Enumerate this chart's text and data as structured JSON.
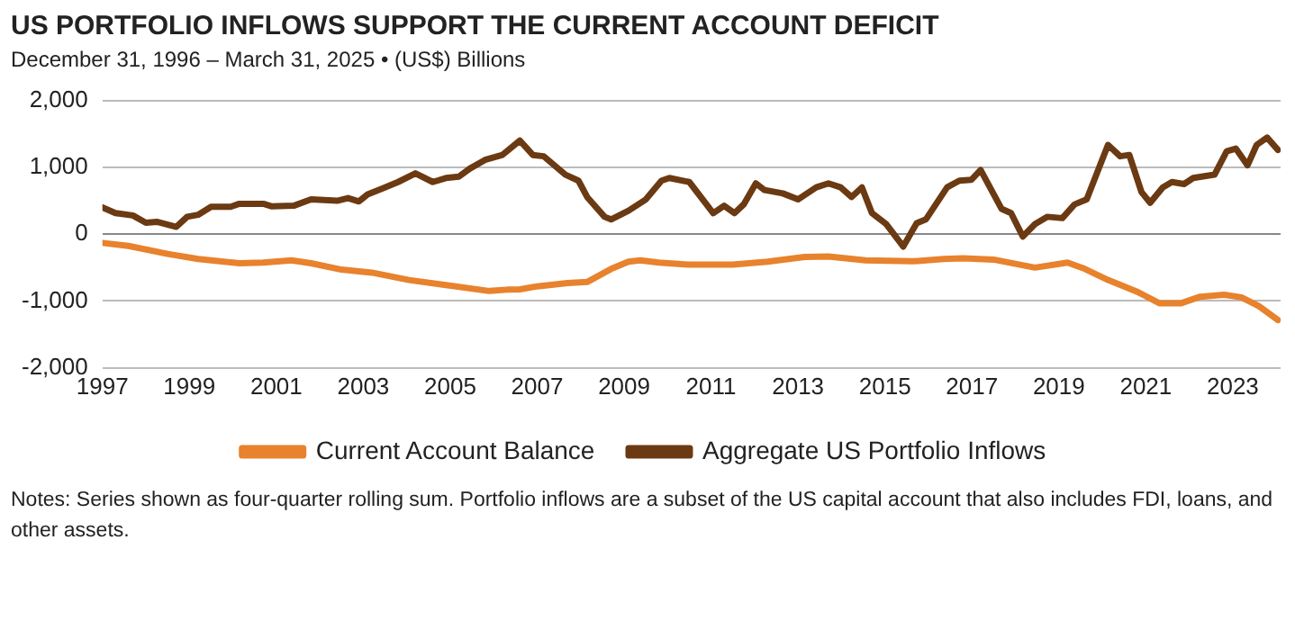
{
  "chart_data": {
    "type": "line",
    "title": "US PORTFOLIO INFLOWS SUPPORT THE CURRENT ACCOUNT DEFICIT",
    "subtitle": "December 31, 1996 – March 31, 2025 • (US$) Billions",
    "annotations": [
      "Notes: Series shown as four-quarter rolling sum. Portfolio inflows are a subset of the US capital account that also includes FDI, loans, and other assets."
    ],
    "xlim": [
      1997,
      2024.1
    ],
    "xticks": [
      1997,
      1999,
      2001,
      2003,
      2005,
      2007,
      2009,
      2011,
      2013,
      2015,
      2017,
      2019,
      2021,
      2023
    ],
    "ylim": [
      -2000,
      2000
    ],
    "yticks": [
      {
        "value": -2000,
        "label": "-2,000"
      },
      {
        "value": -1000,
        "label": "-1,000"
      },
      0,
      {
        "value": 1000,
        "label": "1,000"
      },
      {
        "value": 2000,
        "label": "2,000"
      }
    ],
    "grid": "y",
    "legend": "bottom",
    "marker": "none",
    "line_style": "solid",
    "series": [
      {
        "name": "Current Account Balance",
        "color": "#e8822d",
        "x": [
          1997,
          1997.6,
          1998.5,
          1999.2,
          2000.15,
          2000.7,
          2001.35,
          2001.8,
          2002.5,
          2003.2,
          2004.05,
          2004.9,
          2005.9,
          2006.3,
          2006.6,
          2007,
          2007.7,
          2008.15,
          2008.7,
          2009.1,
          2009.37,
          2009.8,
          2010.5,
          2011.5,
          2012.3,
          2013.15,
          2013.7,
          2014.55,
          2015.65,
          2016.35,
          2016.8,
          2017.5,
          2018.45,
          2019.2,
          2019.6,
          2020.13,
          2020.83,
          2021.32,
          2021.8,
          2022.25,
          2022.8,
          2023.2,
          2023.6,
          2024.04
        ],
        "values": [
          -130,
          -175,
          -295,
          -370,
          -435,
          -425,
          -390,
          -435,
          -530,
          -575,
          -685,
          -760,
          -850,
          -830,
          -825,
          -780,
          -730,
          -715,
          -520,
          -410,
          -390,
          -425,
          -455,
          -455,
          -410,
          -340,
          -335,
          -390,
          -405,
          -370,
          -360,
          -380,
          -500,
          -425,
          -520,
          -685,
          -870,
          -1035,
          -1035,
          -935,
          -905,
          -945,
          -1075,
          -1285
        ]
      },
      {
        "name": "Aggregate US Portfolio Inflows",
        "color": "#6b3a12",
        "x": [
          1997,
          1997.3,
          1997.7,
          1998,
          1998.25,
          1998.7,
          1998.95,
          1999.2,
          1999.5,
          1999.95,
          2000.15,
          2000.7,
          2000.9,
          2001.4,
          2001.8,
          2002.4,
          2002.65,
          2002.9,
          2003.1,
          2003.45,
          2003.8,
          2004.2,
          2004.6,
          2004.9,
          2005.2,
          2005.45,
          2005.8,
          2006.2,
          2006.6,
          2006.9,
          2007.15,
          2007.65,
          2007.95,
          2008.15,
          2008.55,
          2008.7,
          2009.1,
          2009.5,
          2009.86,
          2010.04,
          2010.5,
          2011.05,
          2011.3,
          2011.54,
          2011.75,
          2012.03,
          2012.23,
          2012.65,
          2013,
          2013.42,
          2013.7,
          2013.98,
          2014.23,
          2014.47,
          2014.7,
          2015.03,
          2015.42,
          2015.73,
          2015.94,
          2016.43,
          2016.71,
          2016.99,
          2017.2,
          2017.68,
          2017.9,
          2018.17,
          2018.45,
          2018.73,
          2019.08,
          2019.36,
          2019.64,
          2020.13,
          2020.41,
          2020.62,
          2020.9,
          2021.1,
          2021.39,
          2021.6,
          2021.88,
          2022.09,
          2022.58,
          2022.86,
          2023.07,
          2023.34,
          2023.55,
          2023.79,
          2024.04
        ],
        "values": [
          400,
          315,
          280,
          170,
          185,
          110,
          260,
          290,
          410,
          410,
          455,
          455,
          415,
          425,
          520,
          500,
          540,
          490,
          595,
          685,
          780,
          910,
          780,
          840,
          860,
          980,
          1110,
          1185,
          1400,
          1185,
          1165,
          890,
          800,
          555,
          260,
          220,
          350,
          520,
          800,
          840,
          780,
          315,
          425,
          315,
          445,
          760,
          660,
          610,
          520,
          700,
          760,
          700,
          555,
          700,
          315,
          150,
          -185,
          165,
          220,
          700,
          800,
          815,
          960,
          380,
          315,
          -35,
          150,
          260,
          240,
          445,
          520,
          1335,
          1165,
          1185,
          630,
          470,
          700,
          780,
          750,
          840,
          890,
          1240,
          1280,
          1030,
          1335,
          1445,
          1260
        ]
      }
    ]
  }
}
